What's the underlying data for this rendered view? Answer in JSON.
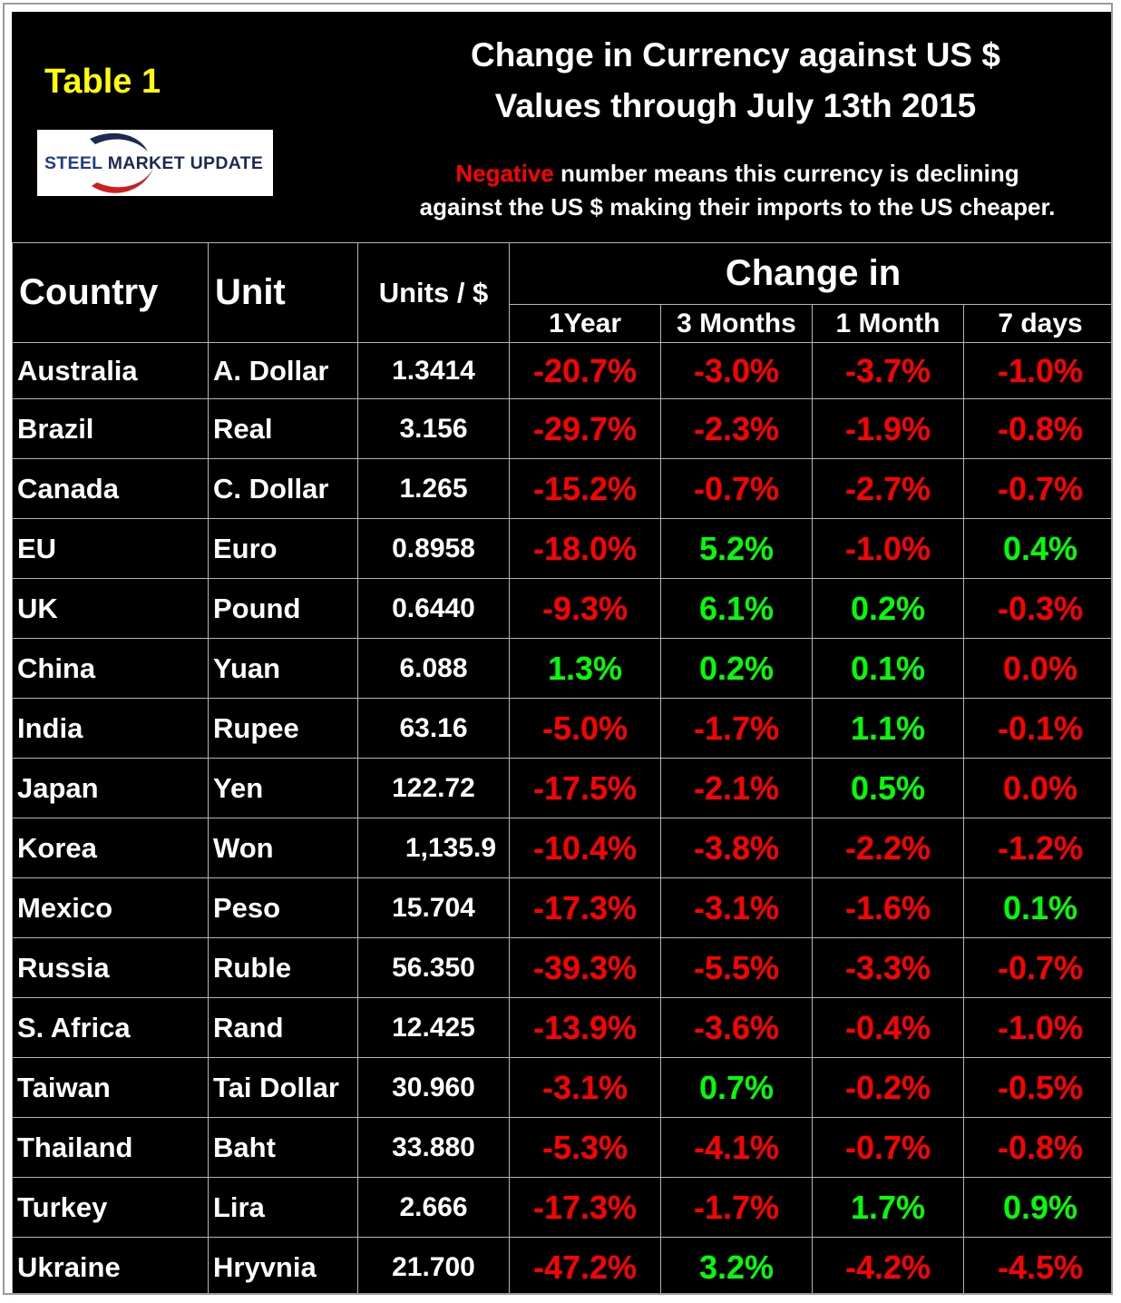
{
  "header": {
    "table_label": "Table 1",
    "title_line1": "Change in Currency against US $",
    "title_line2": "Values through July 13th 2015",
    "note_negative_word": "Negative",
    "note_line1_rest": " number means this currency is declining",
    "note_line2": "against the US $ making their imports to the US cheaper.",
    "logo_text_part1": "STEEL ",
    "logo_text_part2": "MARKET UPDATE"
  },
  "colors": {
    "background": "#000000",
    "text": "#ffffff",
    "label_yellow": "#ffff00",
    "negative_red": "#ff0000",
    "positive_green": "#00ff00",
    "logo_blue": "#1f3d8a",
    "logo_dark": "#1a2a55",
    "logo_red": "#cc1f1f"
  },
  "chart_data": {
    "type": "table",
    "title": "Change in Currency against US $ Values through July 13th 2015",
    "columns": {
      "country": "Country",
      "unit": "Unit",
      "rate": "Units / $",
      "group": "Change in",
      "periods": [
        "1Year",
        "3 Months",
        "1 Month",
        "7 days"
      ]
    },
    "rows": [
      {
        "country": "Australia",
        "unit": "A. Dollar",
        "rate": "1.3414",
        "changes": [
          "-20.7%",
          "-3.0%",
          "-3.7%",
          "-1.0%"
        ]
      },
      {
        "country": "Brazil",
        "unit": "Real",
        "rate": "3.156",
        "changes": [
          "-29.7%",
          "-2.3%",
          "-1.9%",
          "-0.8%"
        ]
      },
      {
        "country": "Canada",
        "unit": "C. Dollar",
        "rate": "1.265",
        "changes": [
          "-15.2%",
          "-0.7%",
          "-2.7%",
          "-0.7%"
        ]
      },
      {
        "country": "EU",
        "unit": "Euro",
        "rate": "0.8958",
        "changes": [
          "-18.0%",
          "5.2%",
          "-1.0%",
          "0.4%"
        ]
      },
      {
        "country": "UK",
        "unit": "Pound",
        "rate": "0.6440",
        "changes": [
          "-9.3%",
          "6.1%",
          "0.2%",
          "-0.3%"
        ]
      },
      {
        "country": "China",
        "unit": "Yuan",
        "rate": "6.088",
        "changes": [
          "1.3%",
          "0.2%",
          "0.1%",
          "0.0%"
        ]
      },
      {
        "country": "India",
        "unit": "Rupee",
        "rate": "63.16",
        "changes": [
          "-5.0%",
          "-1.7%",
          "1.1%",
          "-0.1%"
        ]
      },
      {
        "country": "Japan",
        "unit": "Yen",
        "rate": "122.72",
        "changes": [
          "-17.5%",
          "-2.1%",
          "0.5%",
          "0.0%"
        ]
      },
      {
        "country": "Korea",
        "unit": "Won",
        "rate": "1,135.9",
        "changes": [
          "-10.4%",
          "-3.8%",
          "-2.2%",
          "-1.2%"
        ]
      },
      {
        "country": "Mexico",
        "unit": "Peso",
        "rate": "15.704",
        "changes": [
          "-17.3%",
          "-3.1%",
          "-1.6%",
          "0.1%"
        ]
      },
      {
        "country": "Russia",
        "unit": "Ruble",
        "rate": "56.350",
        "changes": [
          "-39.3%",
          "-5.5%",
          "-3.3%",
          "-0.7%"
        ]
      },
      {
        "country": "S. Africa",
        "unit": "Rand",
        "rate": "12.425",
        "changes": [
          "-13.9%",
          "-3.6%",
          "-0.4%",
          "-1.0%"
        ]
      },
      {
        "country": "Taiwan",
        "unit": "Tai Dollar",
        "rate": "30.960",
        "changes": [
          "-3.1%",
          "0.7%",
          "-0.2%",
          "-0.5%"
        ]
      },
      {
        "country": "Thailand",
        "unit": "Baht",
        "rate": "33.880",
        "changes": [
          "-5.3%",
          "-4.1%",
          "-0.7%",
          "-0.8%"
        ]
      },
      {
        "country": "Turkey",
        "unit": "Lira",
        "rate": "2.666",
        "changes": [
          "-17.3%",
          "-1.7%",
          "1.7%",
          "0.9%"
        ]
      },
      {
        "country": "Ukraine",
        "unit": "Hryvnia",
        "rate": "21.700",
        "changes": [
          "-47.2%",
          "3.2%",
          "-4.2%",
          "-4.5%"
        ]
      }
    ],
    "color_rule": "negative values red; positive values green; 0.0% red"
  }
}
